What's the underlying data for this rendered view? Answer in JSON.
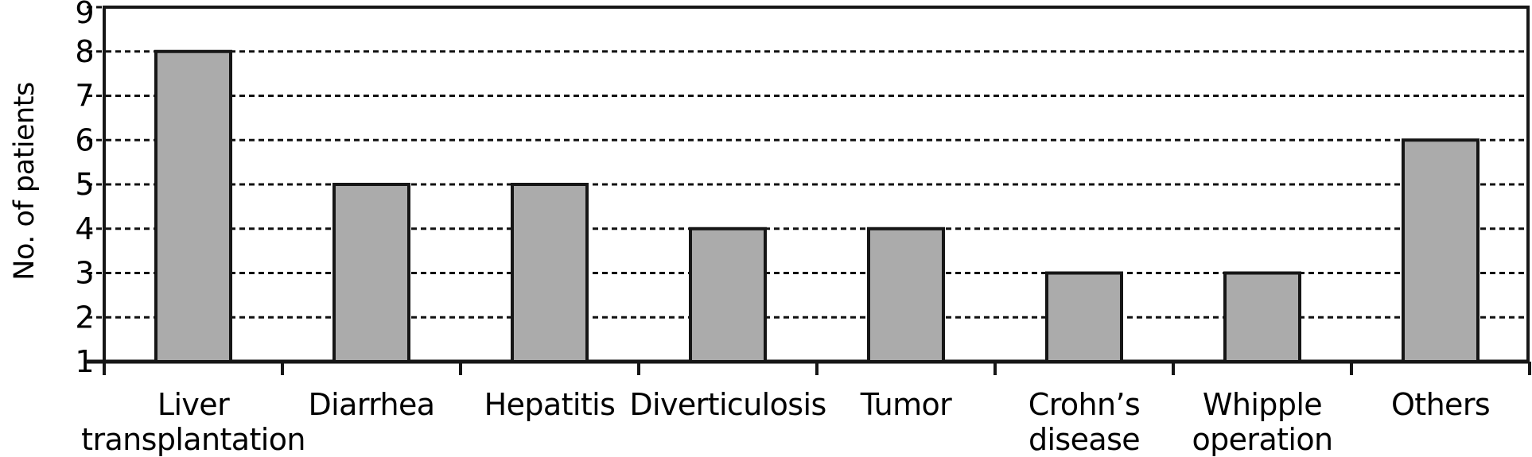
{
  "chart_data": {
    "type": "bar",
    "title": "",
    "ylabel": "No. of patients",
    "xlabel": "",
    "categories": [
      "Liver transplantation",
      "Diarrhea",
      "Hepatitis",
      "Diverticulosis",
      "Tumor",
      "Crohn’s disease",
      "Whipple operation",
      "Others"
    ],
    "category_display_lines": [
      [
        "Liver",
        "transplantation"
      ],
      [
        "Diarrhea"
      ],
      [
        "Hepatitis"
      ],
      [
        "Diverticulosis"
      ],
      [
        "Tumor"
      ],
      [
        "Crohn’s",
        "disease"
      ],
      [
        "Whipple",
        "operation"
      ],
      [
        "Others"
      ]
    ],
    "values": [
      8,
      5,
      5,
      4,
      4,
      3,
      3,
      6
    ],
    "yticks": [
      1,
      2,
      3,
      4,
      5,
      6,
      7,
      8,
      9
    ],
    "ylim": [
      1,
      9
    ],
    "grid": "horizontal-dashed",
    "legend": "none",
    "colors": {
      "bar_fill": "#ABABAB",
      "bar_border": "#161616",
      "axis_line": "#161616",
      "grid_line": "#111111",
      "text": "#000000",
      "background": "#FFFFFF"
    }
  }
}
